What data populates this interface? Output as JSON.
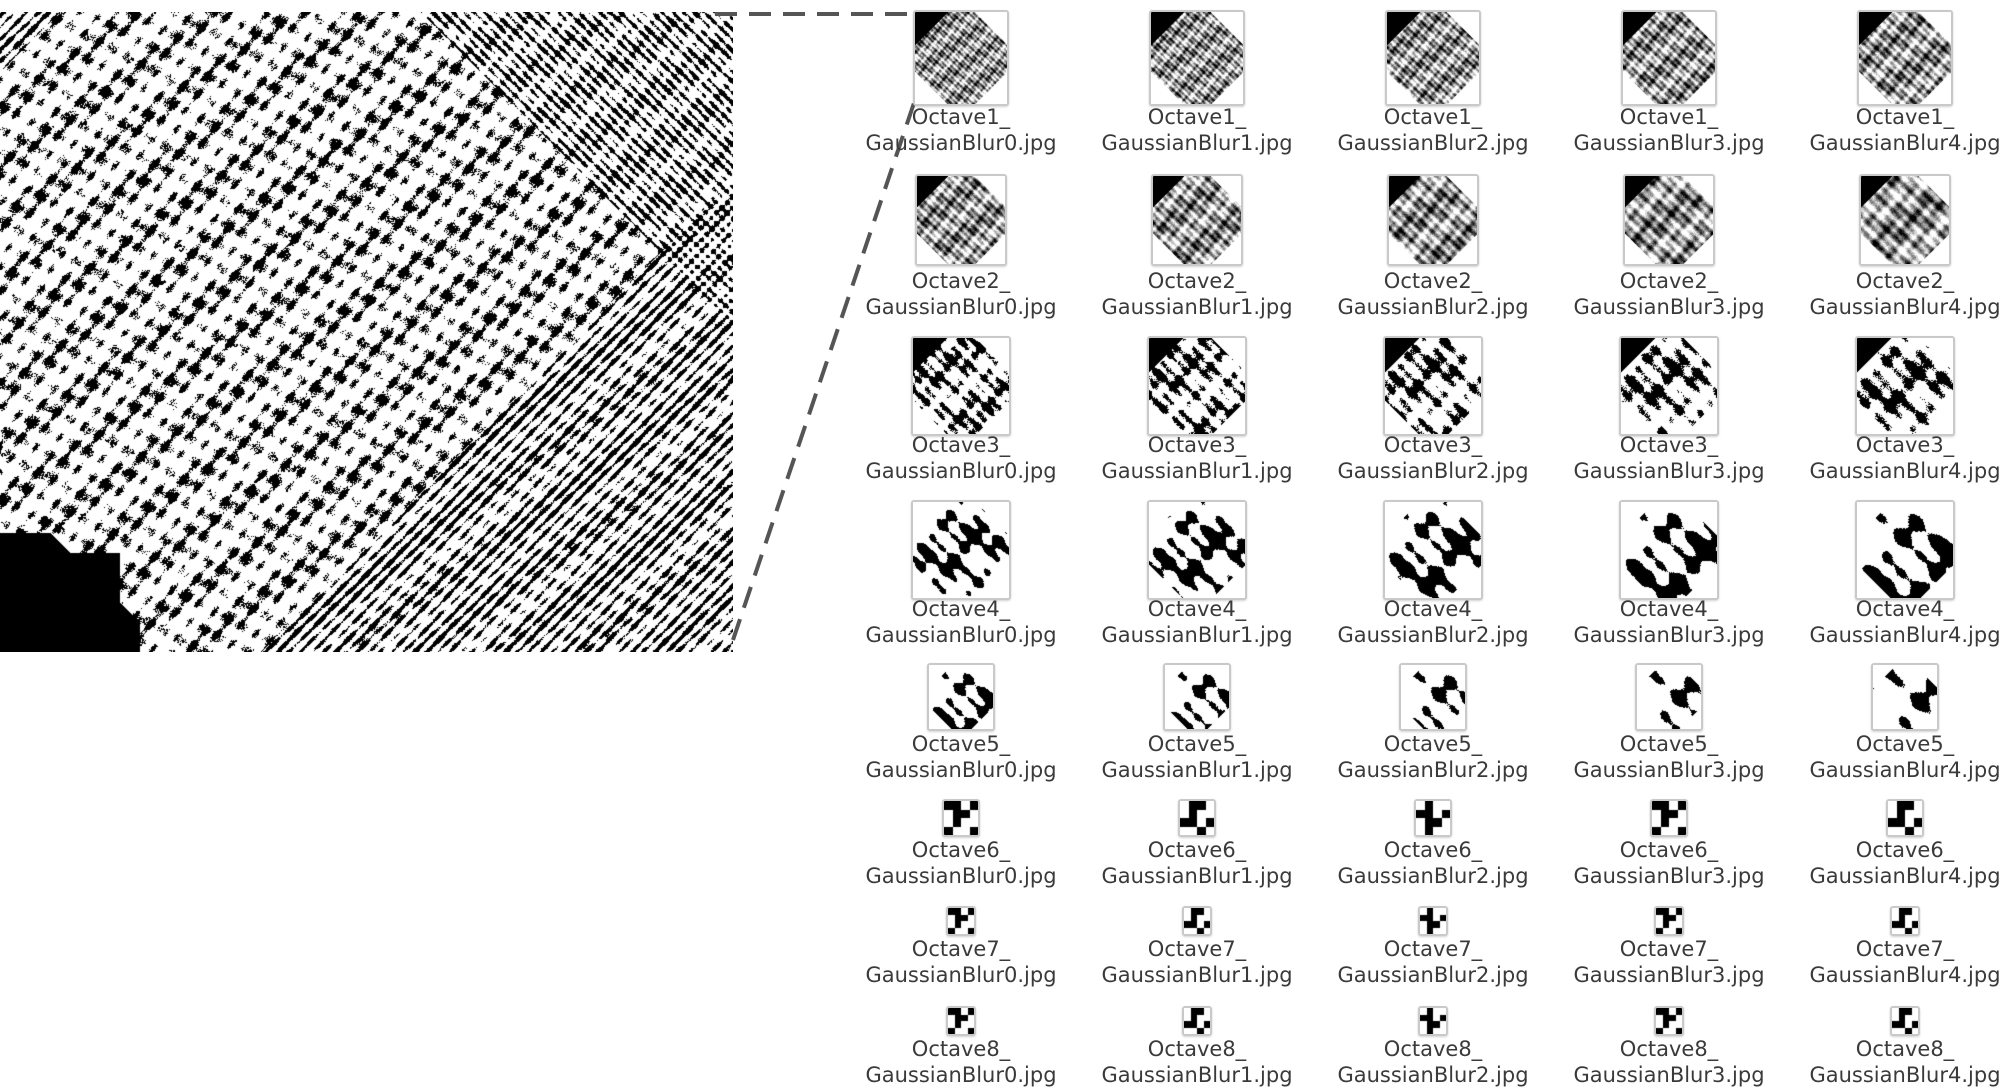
{
  "files": [
    {
      "octave": "Octave1_",
      "blur": "GaussianBlur0.jpg"
    },
    {
      "octave": "Octave1_",
      "blur": "GaussianBlur1.jpg"
    },
    {
      "octave": "Octave1_",
      "blur": "GaussianBlur2.jpg"
    },
    {
      "octave": "Octave1_",
      "blur": "GaussianBlur3.jpg"
    },
    {
      "octave": "Octave1_",
      "blur": "GaussianBlur4.jpg"
    },
    {
      "octave": "Octave2_",
      "blur": "GaussianBlur0.jpg"
    },
    {
      "octave": "Octave2_",
      "blur": "GaussianBlur1.jpg"
    },
    {
      "octave": "Octave2_",
      "blur": "GaussianBlur2.jpg"
    },
    {
      "octave": "Octave2_",
      "blur": "GaussianBlur3.jpg"
    },
    {
      "octave": "Octave2_",
      "blur": "GaussianBlur4.jpg"
    },
    {
      "octave": "Octave3_",
      "blur": "GaussianBlur0.jpg"
    },
    {
      "octave": "Octave3_",
      "blur": "GaussianBlur1.jpg"
    },
    {
      "octave": "Octave3_",
      "blur": "GaussianBlur2.jpg"
    },
    {
      "octave": "Octave3_",
      "blur": "GaussianBlur3.jpg"
    },
    {
      "octave": "Octave3_",
      "blur": "GaussianBlur4.jpg"
    },
    {
      "octave": "Octave4_",
      "blur": "GaussianBlur0.jpg"
    },
    {
      "octave": "Octave4_",
      "blur": "GaussianBlur1.jpg"
    },
    {
      "octave": "Octave4_",
      "blur": "GaussianBlur2.jpg"
    },
    {
      "octave": "Octave4_",
      "blur": "GaussianBlur3.jpg"
    },
    {
      "octave": "Octave4_",
      "blur": "GaussianBlur4.jpg"
    },
    {
      "octave": "Octave5_",
      "blur": "GaussianBlur0.jpg"
    },
    {
      "octave": "Octave5_",
      "blur": "GaussianBlur1.jpg"
    },
    {
      "octave": "Octave5_",
      "blur": "GaussianBlur2.jpg"
    },
    {
      "octave": "Octave5_",
      "blur": "GaussianBlur3.jpg"
    },
    {
      "octave": "Octave5_",
      "blur": "GaussianBlur4.jpg"
    },
    {
      "octave": "Octave6_",
      "blur": "GaussianBlur0.jpg"
    },
    {
      "octave": "Octave6_",
      "blur": "GaussianBlur1.jpg"
    },
    {
      "octave": "Octave6_",
      "blur": "GaussianBlur2.jpg"
    },
    {
      "octave": "Octave6_",
      "blur": "GaussianBlur3.jpg"
    },
    {
      "octave": "Octave6_",
      "blur": "GaussianBlur4.jpg"
    },
    {
      "octave": "Octave7_",
      "blur": "GaussianBlur0.jpg"
    },
    {
      "octave": "Octave7_",
      "blur": "GaussianBlur1.jpg"
    },
    {
      "octave": "Octave7_",
      "blur": "GaussianBlur2.jpg"
    },
    {
      "octave": "Octave7_",
      "blur": "GaussianBlur3.jpg"
    },
    {
      "octave": "Octave7_",
      "blur": "GaussianBlur4.jpg"
    },
    {
      "octave": "Octave8_",
      "blur": "GaussianBlur0.jpg"
    },
    {
      "octave": "Octave8_",
      "blur": "GaussianBlur1.jpg"
    },
    {
      "octave": "Octave8_",
      "blur": "GaussianBlur2.jpg"
    },
    {
      "octave": "Octave8_",
      "blur": "GaussianBlur3.jpg"
    },
    {
      "octave": "Octave8_",
      "blur": "GaussianBlur4.jpg"
    }
  ],
  "colors": {
    "ink": "#000000",
    "paper": "#ffffff",
    "thumb_border": "#c9c9c9",
    "label_text": "#3a3a3a",
    "connector": "#555555"
  }
}
